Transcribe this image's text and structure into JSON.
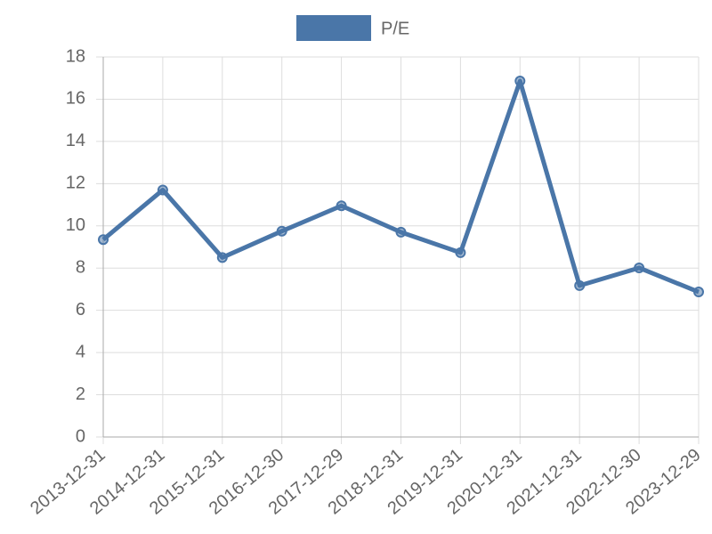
{
  "chart_data": {
    "type": "line",
    "categories": [
      "2013-12-31",
      "2014-12-31",
      "2015-12-31",
      "2016-12-30",
      "2017-12-29",
      "2018-12-31",
      "2019-12-31",
      "2020-12-31",
      "2021-12-31",
      "2022-12-30",
      "2023-12-29"
    ],
    "series": [
      {
        "name": "P/E",
        "color": "#4a76a8",
        "values": [
          9.35,
          11.7,
          8.5,
          9.75,
          10.95,
          9.7,
          8.73,
          16.86,
          7.17,
          8.01,
          6.87
        ]
      }
    ],
    "ylim": [
      0,
      18
    ],
    "yticks": [
      0,
      2,
      4,
      6,
      8,
      10,
      12,
      14,
      16,
      18
    ],
    "grid": true,
    "legend": "top"
  }
}
